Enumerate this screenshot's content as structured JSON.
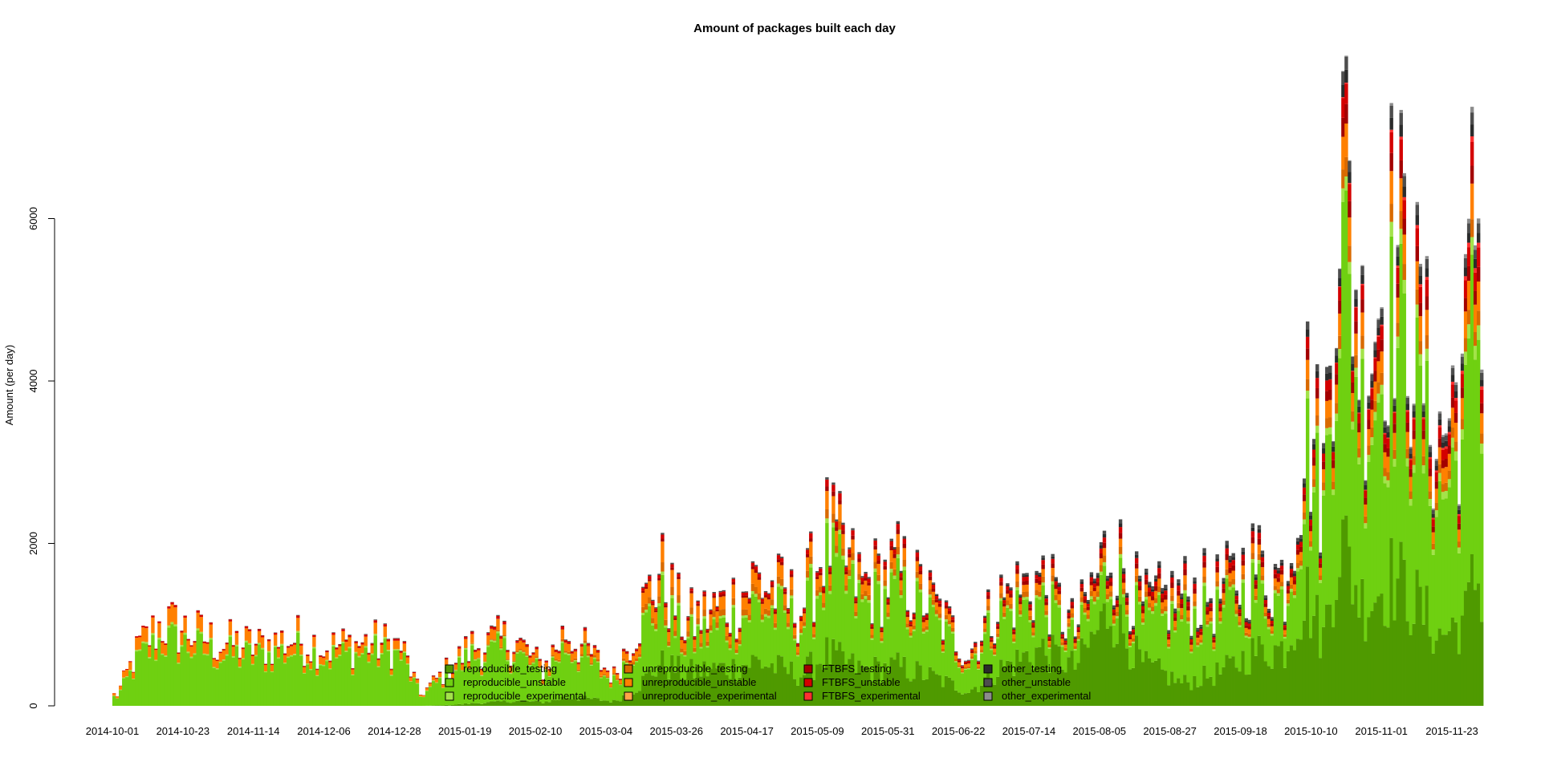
{
  "chart_data": {
    "type": "bar",
    "stacked": true,
    "title": "Amount of packages built each day",
    "xlabel": "",
    "ylabel": "Amount (per day)",
    "ylim": [
      0,
      8000
    ],
    "yticks": [
      0,
      2000,
      4000,
      6000
    ],
    "xtick_labels": [
      "2014-10-01",
      "2014-10-23",
      "2014-11-14",
      "2014-12-06",
      "2014-12-28",
      "2015-01-19",
      "2015-02-10",
      "2015-03-04",
      "2015-03-26",
      "2015-04-17",
      "2015-05-09",
      "2015-05-31",
      "2015-06-22",
      "2015-07-14",
      "2015-08-05",
      "2015-08-27",
      "2015-09-18",
      "2015-10-10",
      "2015-11-01",
      "2015-11-23"
    ],
    "grid": false,
    "legend_position": "bottom",
    "x_start": "2014-09-30",
    "x_end": "2015-11-28",
    "series": [
      {
        "name": "reproducible_testing",
        "color": "#4f9a00"
      },
      {
        "name": "reproducible_unstable",
        "color": "#6fd011"
      },
      {
        "name": "reproducible_experimental",
        "color": "#a3e34a"
      },
      {
        "name": "unreproducible_testing",
        "color": "#d96a00"
      },
      {
        "name": "unreproducible_unstable",
        "color": "#ff8000"
      },
      {
        "name": "unreproducible_experimental",
        "color": "#ffa347"
      },
      {
        "name": "FTBFS_testing",
        "color": "#a30000"
      },
      {
        "name": "FTBFS_unstable",
        "color": "#d40000"
      },
      {
        "name": "FTBFS_experimental",
        "color": "#ff3030"
      },
      {
        "name": "other_testing",
        "color": "#2b2b2b"
      },
      {
        "name": "other_unstable",
        "color": "#4d4d4d"
      },
      {
        "name": "other_experimental",
        "color": "#8c8c8c"
      }
    ],
    "totals_by_date": [
      {
        "date": "2014-10-01",
        "total": 150
      },
      {
        "date": "2014-10-08",
        "total": 800
      },
      {
        "date": "2014-10-15",
        "total": 1100
      },
      {
        "date": "2014-10-23",
        "total": 1000
      },
      {
        "date": "2014-11-01",
        "total": 850
      },
      {
        "date": "2014-11-14",
        "total": 800
      },
      {
        "date": "2014-11-25",
        "total": 900
      },
      {
        "date": "2014-12-06",
        "total": 780
      },
      {
        "date": "2014-12-18",
        "total": 850
      },
      {
        "date": "2014-12-28",
        "total": 800
      },
      {
        "date": "2015-01-03",
        "total": 150
      },
      {
        "date": "2015-01-19",
        "total": 800
      },
      {
        "date": "2015-02-01",
        "total": 900
      },
      {
        "date": "2015-02-10",
        "total": 500
      },
      {
        "date": "2015-02-17",
        "total": 1000
      },
      {
        "date": "2015-03-04",
        "total": 400
      },
      {
        "date": "2015-03-18",
        "total": 1800
      },
      {
        "date": "2015-03-26",
        "total": 1100
      },
      {
        "date": "2015-04-10",
        "total": 1400
      },
      {
        "date": "2015-04-17",
        "total": 1700
      },
      {
        "date": "2015-05-01",
        "total": 1300
      },
      {
        "date": "2015-05-09",
        "total": 2300
      },
      {
        "date": "2015-05-20",
        "total": 1600
      },
      {
        "date": "2015-05-31",
        "total": 1800
      },
      {
        "date": "2015-06-10",
        "total": 1400
      },
      {
        "date": "2015-06-22",
        "total": 700
      },
      {
        "date": "2015-07-01",
        "total": 1400
      },
      {
        "date": "2015-07-14",
        "total": 1700
      },
      {
        "date": "2015-07-25",
        "total": 1000
      },
      {
        "date": "2015-08-05",
        "total": 2200
      },
      {
        "date": "2015-08-15",
        "total": 1300
      },
      {
        "date": "2015-08-27",
        "total": 1500
      },
      {
        "date": "2015-09-08",
        "total": 1500
      },
      {
        "date": "2015-09-18",
        "total": 1900
      },
      {
        "date": "2015-09-28",
        "total": 1700
      },
      {
        "date": "2015-10-05",
        "total": 4000
      },
      {
        "date": "2015-10-10",
        "total": 3000
      },
      {
        "date": "2015-10-15",
        "total": 7700
      },
      {
        "date": "2015-10-22",
        "total": 4800
      },
      {
        "date": "2015-11-01",
        "total": 6200
      },
      {
        "date": "2015-11-08",
        "total": 5000
      },
      {
        "date": "2015-11-15",
        "total": 3500
      },
      {
        "date": "2015-11-23",
        "total": 4600
      },
      {
        "date": "2015-11-26",
        "total": 6900
      },
      {
        "date": "2015-11-28",
        "total": 6300
      }
    ],
    "composition_by_date": [
      {
        "date": "2014-10-01",
        "shares": [
          0.0,
          0.78,
          0.02,
          0.0,
          0.18,
          0.0,
          0.0,
          0.02,
          0.0,
          0.0,
          0.0,
          0.0
        ]
      },
      {
        "date": "2015-01-03",
        "shares": [
          0.0,
          0.82,
          0.02,
          0.0,
          0.12,
          0.0,
          0.0,
          0.03,
          0.0,
          0.0,
          0.01,
          0.0
        ]
      },
      {
        "date": "2015-03-04",
        "shares": [
          0.15,
          0.62,
          0.02,
          0.04,
          0.12,
          0.0,
          0.01,
          0.03,
          0.0,
          0.0,
          0.01,
          0.0
        ]
      },
      {
        "date": "2015-03-26",
        "shares": [
          0.4,
          0.35,
          0.02,
          0.06,
          0.12,
          0.0,
          0.02,
          0.02,
          0.0,
          0.0,
          0.01,
          0.0
        ]
      },
      {
        "date": "2015-05-09",
        "shares": [
          0.3,
          0.5,
          0.02,
          0.04,
          0.08,
          0.0,
          0.02,
          0.03,
          0.0,
          0.0,
          0.01,
          0.0
        ]
      },
      {
        "date": "2015-06-22",
        "shares": [
          0.28,
          0.52,
          0.02,
          0.04,
          0.06,
          0.0,
          0.03,
          0.03,
          0.0,
          0.01,
          0.01,
          0.0
        ]
      },
      {
        "date": "2015-08-05",
        "shares": [
          0.6,
          0.2,
          0.02,
          0.04,
          0.04,
          0.0,
          0.03,
          0.03,
          0.0,
          0.02,
          0.02,
          0.0
        ]
      },
      {
        "date": "2015-08-27",
        "shares": [
          0.2,
          0.55,
          0.02,
          0.04,
          0.06,
          0.0,
          0.04,
          0.04,
          0.0,
          0.02,
          0.03,
          0.0
        ]
      },
      {
        "date": "2015-09-28",
        "shares": [
          0.45,
          0.35,
          0.02,
          0.03,
          0.05,
          0.0,
          0.03,
          0.03,
          0.0,
          0.02,
          0.02,
          0.0
        ]
      },
      {
        "date": "2015-10-10",
        "shares": [
          0.3,
          0.5,
          0.02,
          0.03,
          0.05,
          0.0,
          0.03,
          0.03,
          0.0,
          0.02,
          0.02,
          0.0
        ]
      },
      {
        "date": "2015-11-28",
        "shares": [
          0.25,
          0.5,
          0.03,
          0.03,
          0.06,
          0.0,
          0.03,
          0.04,
          0.01,
          0.02,
          0.02,
          0.01
        ]
      }
    ]
  }
}
